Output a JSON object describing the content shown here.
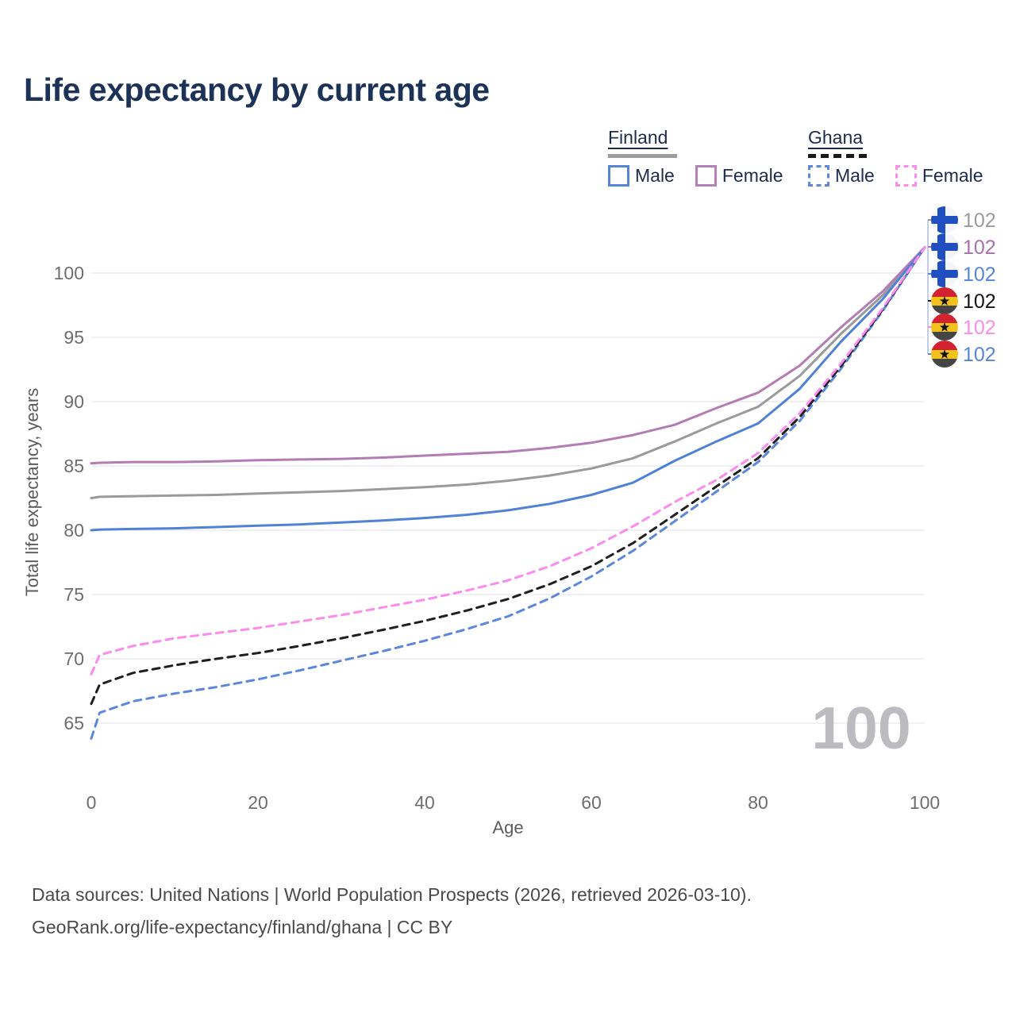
{
  "title": "Life expectancy by current age",
  "legend": {
    "groups": [
      {
        "country": "Finland",
        "line": {
          "style": "solid",
          "color": "#9e9e9e"
        },
        "items": [
          {
            "label": "Male",
            "style": "solid",
            "color": "#5585d8"
          },
          {
            "label": "Female",
            "style": "solid",
            "color": "#b77fb9"
          }
        ]
      },
      {
        "country": "Ghana",
        "line": {
          "style": "dashed",
          "color": "#1a1a1a"
        },
        "items": [
          {
            "label": "Male",
            "style": "dashed",
            "color": "#5b87dd"
          },
          {
            "label": "Female",
            "style": "dashed",
            "color": "#fb8bef"
          }
        ]
      }
    ]
  },
  "chart_data": {
    "type": "line",
    "title": "Life expectancy by current age",
    "xlabel": "Age",
    "ylabel": "Total life expectancy, years",
    "xlim": [
      0,
      100
    ],
    "ylim": [
      63,
      104
    ],
    "xticks": [
      0,
      20,
      40,
      60,
      80,
      100
    ],
    "yticks": [
      65,
      70,
      75,
      80,
      85,
      90,
      95,
      100
    ],
    "grid": "horizontal",
    "legend_position": "top-right",
    "watermark": "100",
    "x": [
      0,
      1,
      5,
      10,
      15,
      20,
      25,
      30,
      35,
      40,
      45,
      50,
      55,
      60,
      65,
      70,
      75,
      80,
      85,
      90,
      95,
      100
    ],
    "series": [
      {
        "name": "Finland Total",
        "country": "Finland",
        "group": "total",
        "style": "solid",
        "color": "#9a9a9a",
        "values": [
          82.5,
          82.6,
          82.65,
          82.7,
          82.75,
          82.85,
          82.95,
          83.05,
          83.2,
          83.35,
          83.55,
          83.85,
          84.25,
          84.8,
          85.6,
          86.9,
          88.3,
          89.6,
          92.0,
          95.3,
          98.3,
          102
        ]
      },
      {
        "name": "Finland Female",
        "country": "Finland",
        "group": "female",
        "style": "solid",
        "color": "#b47cb4",
        "values": [
          85.2,
          85.25,
          85.3,
          85.3,
          85.35,
          85.45,
          85.5,
          85.55,
          85.65,
          85.8,
          85.95,
          86.1,
          86.4,
          86.8,
          87.4,
          88.2,
          89.5,
          90.7,
          92.8,
          95.8,
          98.6,
          102
        ]
      },
      {
        "name": "Finland Male",
        "country": "Finland",
        "group": "male",
        "style": "solid",
        "color": "#4f81d6",
        "values": [
          80.0,
          80.05,
          80.1,
          80.15,
          80.25,
          80.35,
          80.45,
          80.6,
          80.75,
          80.95,
          81.2,
          81.55,
          82.05,
          82.75,
          83.7,
          85.4,
          86.9,
          88.3,
          91.0,
          94.7,
          98.0,
          102
        ]
      },
      {
        "name": "Ghana Male",
        "country": "Ghana",
        "group": "male",
        "style": "dashed",
        "color": "#5b87dd",
        "values": [
          63.8,
          65.8,
          66.7,
          67.3,
          67.8,
          68.4,
          69.1,
          69.85,
          70.6,
          71.4,
          72.3,
          73.3,
          74.7,
          76.4,
          78.4,
          80.7,
          83.0,
          85.3,
          88.5,
          92.6,
          97.1,
          102
        ]
      },
      {
        "name": "Ghana Total",
        "country": "Ghana",
        "group": "total",
        "style": "dashed",
        "color": "#1f1f1f",
        "values": [
          66.5,
          68.0,
          68.9,
          69.5,
          70.0,
          70.45,
          71.0,
          71.6,
          72.25,
          72.95,
          73.75,
          74.65,
          75.8,
          77.2,
          79.0,
          81.2,
          83.4,
          85.6,
          88.8,
          92.8,
          97.2,
          102
        ]
      },
      {
        "name": "Ghana Female",
        "country": "Ghana",
        "group": "female",
        "style": "dashed",
        "color": "#fb8bef",
        "values": [
          68.8,
          70.3,
          71.0,
          71.6,
          72.0,
          72.4,
          72.9,
          73.4,
          74.0,
          74.6,
          75.3,
          76.1,
          77.2,
          78.6,
          80.3,
          82.2,
          83.9,
          86.0,
          89.1,
          93.0,
          97.3,
          102
        ]
      }
    ],
    "end_labels": [
      {
        "flag": "finland",
        "value": "102",
        "color": "#9b9b9b"
      },
      {
        "flag": "finland",
        "value": "102",
        "color": "#a86fae"
      },
      {
        "flag": "finland",
        "value": "102",
        "color": "#5585d8"
      },
      {
        "flag": "ghana",
        "value": "102",
        "color": "#141414"
      },
      {
        "flag": "ghana",
        "value": "102",
        "color": "#f98bea"
      },
      {
        "flag": "ghana",
        "value": "102",
        "color": "#5585d8"
      }
    ]
  },
  "footer": {
    "line1": "Data sources: United Nations | World Population Prospects (2026, retrieved 2026-03-10).",
    "line2": "GeoRank.org/life-expectancy/finland/ghana | CC BY"
  }
}
